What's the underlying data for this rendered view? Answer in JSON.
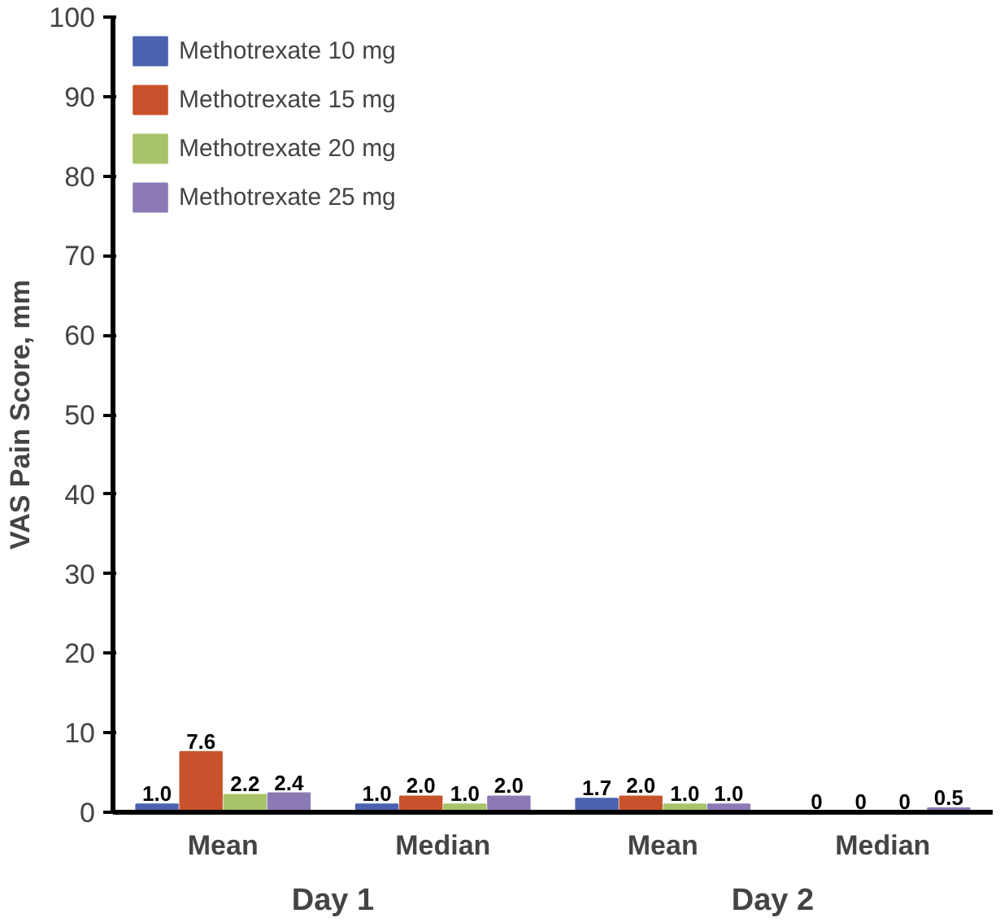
{
  "chart_data": {
    "type": "bar",
    "ylabel": "VAS Pain Score, mm",
    "categories": [
      "Mean",
      "Median",
      "Mean",
      "Median"
    ],
    "series": [
      {
        "name": "Methotrexate 10 mg",
        "color": "#4a62b0",
        "values": [
          1.0,
          1.0,
          1.7,
          0
        ],
        "value_labels": [
          "1.0",
          "1.0",
          "1.7",
          "0"
        ]
      },
      {
        "name": "Methotrexate 15 mg",
        "color": "#c8522c",
        "values": [
          7.6,
          2.0,
          2.0,
          0
        ],
        "value_labels": [
          "7.6",
          "2.0",
          "2.0",
          "0"
        ]
      },
      {
        "name": "Methotrexate 20 mg",
        "color": "#a8c46a",
        "values": [
          2.2,
          1.0,
          1.0,
          0
        ],
        "value_labels": [
          "2.2",
          "1.0",
          "1.0",
          "0"
        ]
      },
      {
        "name": "Methotrexate 25 mg",
        "color": "#8c7ab5",
        "values": [
          2.4,
          2.0,
          1.0,
          0.5
        ],
        "value_labels": [
          "2.4",
          "2.0",
          "1.0",
          "0.5"
        ]
      }
    ],
    "ylim": [
      0,
      100
    ],
    "yticks": [
      0,
      10,
      20,
      30,
      40,
      50,
      60,
      70,
      80,
      90,
      100
    ],
    "grid": false,
    "legend": "top left",
    "annotations": [
      "Day 1",
      "Day 2"
    ]
  }
}
